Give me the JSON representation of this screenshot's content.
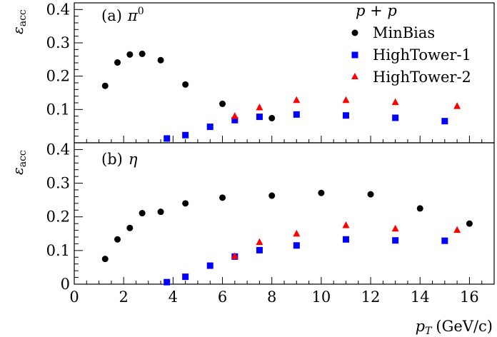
{
  "chart_data": [
    {
      "type": "scatter",
      "panel_label": "(a)",
      "particle": "π",
      "particle_sup": "0",
      "ylabel_main": "ε",
      "ylabel_sub": "acc",
      "ylim": [
        0,
        0.42
      ],
      "yticks": [
        "0.1",
        "0.2",
        "0.3",
        "0.4"
      ],
      "ytick_values": [
        0.1,
        0.2,
        0.3,
        0.4
      ],
      "xlim": [
        0,
        17
      ],
      "legend": {
        "title": "p + p",
        "position": "top-right",
        "entries": [
          "MinBias",
          "HighTower-1",
          "HighTower-2"
        ]
      },
      "series": [
        {
          "name": "MinBias",
          "marker": "circle",
          "color": "#000000",
          "points": [
            [
              1.25,
              0.171
            ],
            [
              1.75,
              0.241
            ],
            [
              2.25,
              0.265
            ],
            [
              2.75,
              0.267
            ],
            [
              3.5,
              0.248
            ],
            [
              4.5,
              0.175
            ],
            [
              6.0,
              0.117
            ],
            [
              8.0,
              0.074
            ]
          ]
        },
        {
          "name": "HighTower-1",
          "marker": "square",
          "color": "#0000ff",
          "points": [
            [
              3.75,
              0.013
            ],
            [
              4.5,
              0.023
            ],
            [
              5.5,
              0.048
            ],
            [
              6.5,
              0.068
            ],
            [
              7.5,
              0.078
            ],
            [
              9.0,
              0.085
            ],
            [
              11.0,
              0.082
            ],
            [
              13.0,
              0.075
            ],
            [
              15.0,
              0.065
            ]
          ]
        },
        {
          "name": "HighTower-2",
          "marker": "triangle",
          "color": "#ff0000",
          "points": [
            [
              6.5,
              0.08
            ],
            [
              7.5,
              0.106
            ],
            [
              9.0,
              0.128
            ],
            [
              11.0,
              0.128
            ],
            [
              13.0,
              0.122
            ],
            [
              15.5,
              0.11
            ]
          ]
        }
      ]
    },
    {
      "type": "scatter",
      "panel_label": "(b)",
      "particle": "η",
      "particle_sup": "",
      "ylabel_main": "ε",
      "ylabel_sub": "acc",
      "ylim": [
        0,
        0.42
      ],
      "yticks": [
        "0",
        "0.1",
        "0.2",
        "0.3",
        "0.4"
      ],
      "ytick_values": [
        0,
        0.1,
        0.2,
        0.3,
        0.4
      ],
      "xlim": [
        0,
        17
      ],
      "xticks": [
        "0",
        "2",
        "4",
        "6",
        "8",
        "10",
        "12",
        "14",
        "16"
      ],
      "xtick_values": [
        0,
        2,
        4,
        6,
        8,
        10,
        12,
        14,
        16
      ],
      "xlabel_var": "p",
      "xlabel_sub": "T",
      "xlabel_unit": "(GeV/c)",
      "series": [
        {
          "name": "MinBias",
          "marker": "circle",
          "color": "#000000",
          "points": [
            [
              1.25,
              0.075
            ],
            [
              1.75,
              0.133
            ],
            [
              2.25,
              0.167
            ],
            [
              2.75,
              0.211
            ],
            [
              3.5,
              0.215
            ],
            [
              4.5,
              0.24
            ],
            [
              6.0,
              0.257
            ],
            [
              8.0,
              0.263
            ],
            [
              10.0,
              0.271
            ],
            [
              12.0,
              0.267
            ],
            [
              14.0,
              0.225
            ],
            [
              16.0,
              0.18
            ]
          ]
        },
        {
          "name": "HighTower-1",
          "marker": "square",
          "color": "#0000ff",
          "points": [
            [
              3.75,
              0.006
            ],
            [
              4.5,
              0.022
            ],
            [
              5.5,
              0.055
            ],
            [
              6.5,
              0.082
            ],
            [
              7.5,
              0.101
            ],
            [
              9.0,
              0.115
            ],
            [
              11.0,
              0.133
            ],
            [
              13.0,
              0.13
            ],
            [
              15.0,
              0.129
            ]
          ]
        },
        {
          "name": "HighTower-2",
          "marker": "triangle",
          "color": "#ff0000",
          "points": [
            [
              6.5,
              0.083
            ],
            [
              7.5,
              0.125
            ],
            [
              9.0,
              0.15
            ],
            [
              11.0,
              0.175
            ],
            [
              13.0,
              0.165
            ],
            [
              15.5,
              0.161
            ]
          ]
        }
      ]
    }
  ]
}
